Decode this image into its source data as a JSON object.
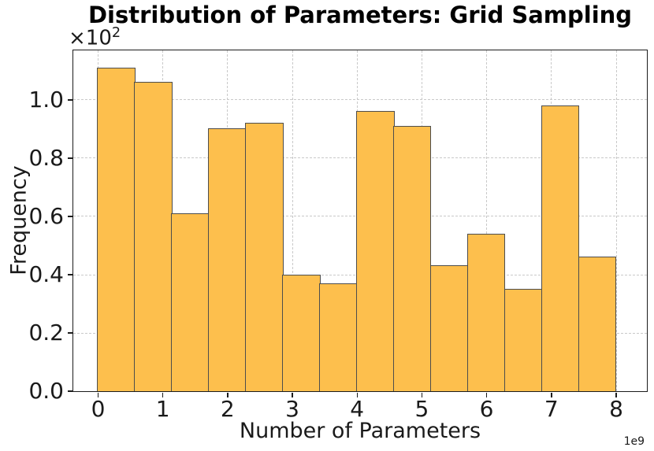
{
  "figure": {
    "title": "Distribution of Parameters: Grid Sampling",
    "xlabel": "Number of Parameters",
    "ylabel": "Frequency",
    "y_scale_offset": {
      "base": "×10",
      "exponent": "2"
    },
    "x_scale_offset": "1e9"
  },
  "chart_data": {
    "type": "bar",
    "subtype": "histogram",
    "title": "Distribution of Parameters: Grid Sampling",
    "xlabel": "Number of Parameters",
    "ylabel": "Frequency",
    "x_axis_multiplier": "1e9",
    "y_axis_multiplier": "×10²",
    "x_tick_labels": [
      "0",
      "1",
      "2",
      "3",
      "4",
      "5",
      "6",
      "7",
      "8"
    ],
    "x_tick_values": [
      0,
      1,
      2,
      3,
      4,
      5,
      6,
      7,
      8
    ],
    "y_tick_labels": [
      "0.0",
      "0.2",
      "0.4",
      "0.6",
      "0.8",
      "1.0"
    ],
    "y_tick_values_counts": [
      0,
      20,
      40,
      60,
      80,
      100
    ],
    "bin_edges_in_1e9": [
      0,
      0.5714,
      1.1429,
      1.7143,
      2.2857,
      2.8571,
      3.4286,
      4.0,
      4.5714,
      5.1429,
      5.7143,
      6.2857,
      6.8571,
      7.4286,
      8.0
    ],
    "frequencies": [
      111,
      106,
      61,
      90,
      92,
      40,
      37,
      96,
      91,
      43,
      54,
      35,
      98,
      46
    ],
    "xlim_in_1e9": [
      -0.383,
      8.475
    ],
    "ylim_counts": [
      0,
      117
    ],
    "grid": true,
    "legend": null,
    "colors": {
      "bar_fill": "#FDBF4D",
      "bar_edge": "#4D4D4D",
      "grid": "#C9C9C9",
      "spine": "#1C1C1C",
      "text": "#1A1A1A"
    }
  }
}
